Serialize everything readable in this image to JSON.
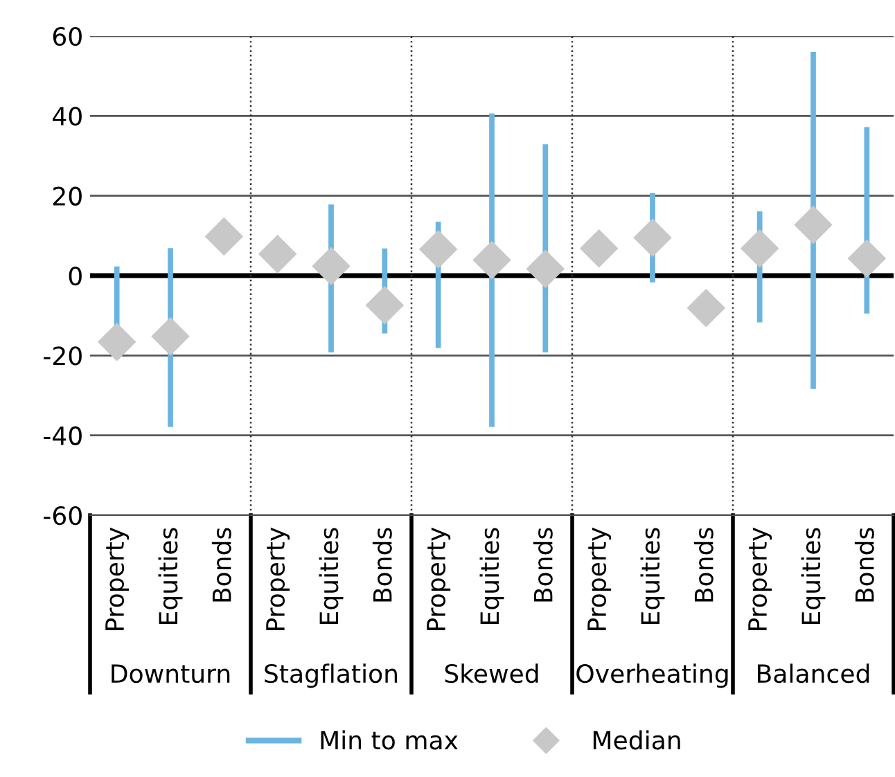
{
  "chart_data": {
    "type": "bar",
    "categories": [
      "Property",
      "Equities",
      "Bonds",
      "Property",
      "Equities",
      "Bonds",
      "Property",
      "Equities",
      "Bonds",
      "Property",
      "Equities",
      "Bonds",
      "Property",
      "Equities",
      "Bonds"
    ],
    "series": [
      {
        "name": "Min to max",
        "color": "#6cb4e0",
        "base": [
          -20.9,
          -37.9,
          null,
          null,
          -19.2,
          -14.5,
          -18.1,
          -37.9,
          -19.2,
          null,
          -1.7,
          null,
          -11.7,
          -28.4,
          -9.5
        ],
        "values": [
          23.2,
          44.8,
          null,
          null,
          37.0,
          21.3,
          31.6,
          78.5,
          52.1,
          null,
          22.4,
          null,
          27.8,
          84.4,
          46.7
        ]
      },
      {
        "name": "Median",
        "type": "scatter",
        "color": "#c8c8c8",
        "marker": "diamond",
        "values": [
          -16.6,
          -15.2,
          9.8,
          5.4,
          2.4,
          -7.4,
          6.6,
          3.9,
          1.7,
          6.8,
          9.5,
          -8.1,
          6.8,
          12.7,
          4.3
        ]
      }
    ],
    "annotations": [
      "Downturn",
      "Stagflation",
      "Skewed",
      "Overheating",
      "Balanced"
    ],
    "ylim": [
      -60,
      60
    ],
    "yticks": [
      -60,
      -40,
      -20,
      0,
      20,
      40,
      60
    ],
    "grid": "y",
    "legend": "bottom",
    "ref_lines": [
      {
        "axis": "y",
        "value": 0,
        "color": "#000000",
        "line_style": "solid"
      }
    ]
  }
}
